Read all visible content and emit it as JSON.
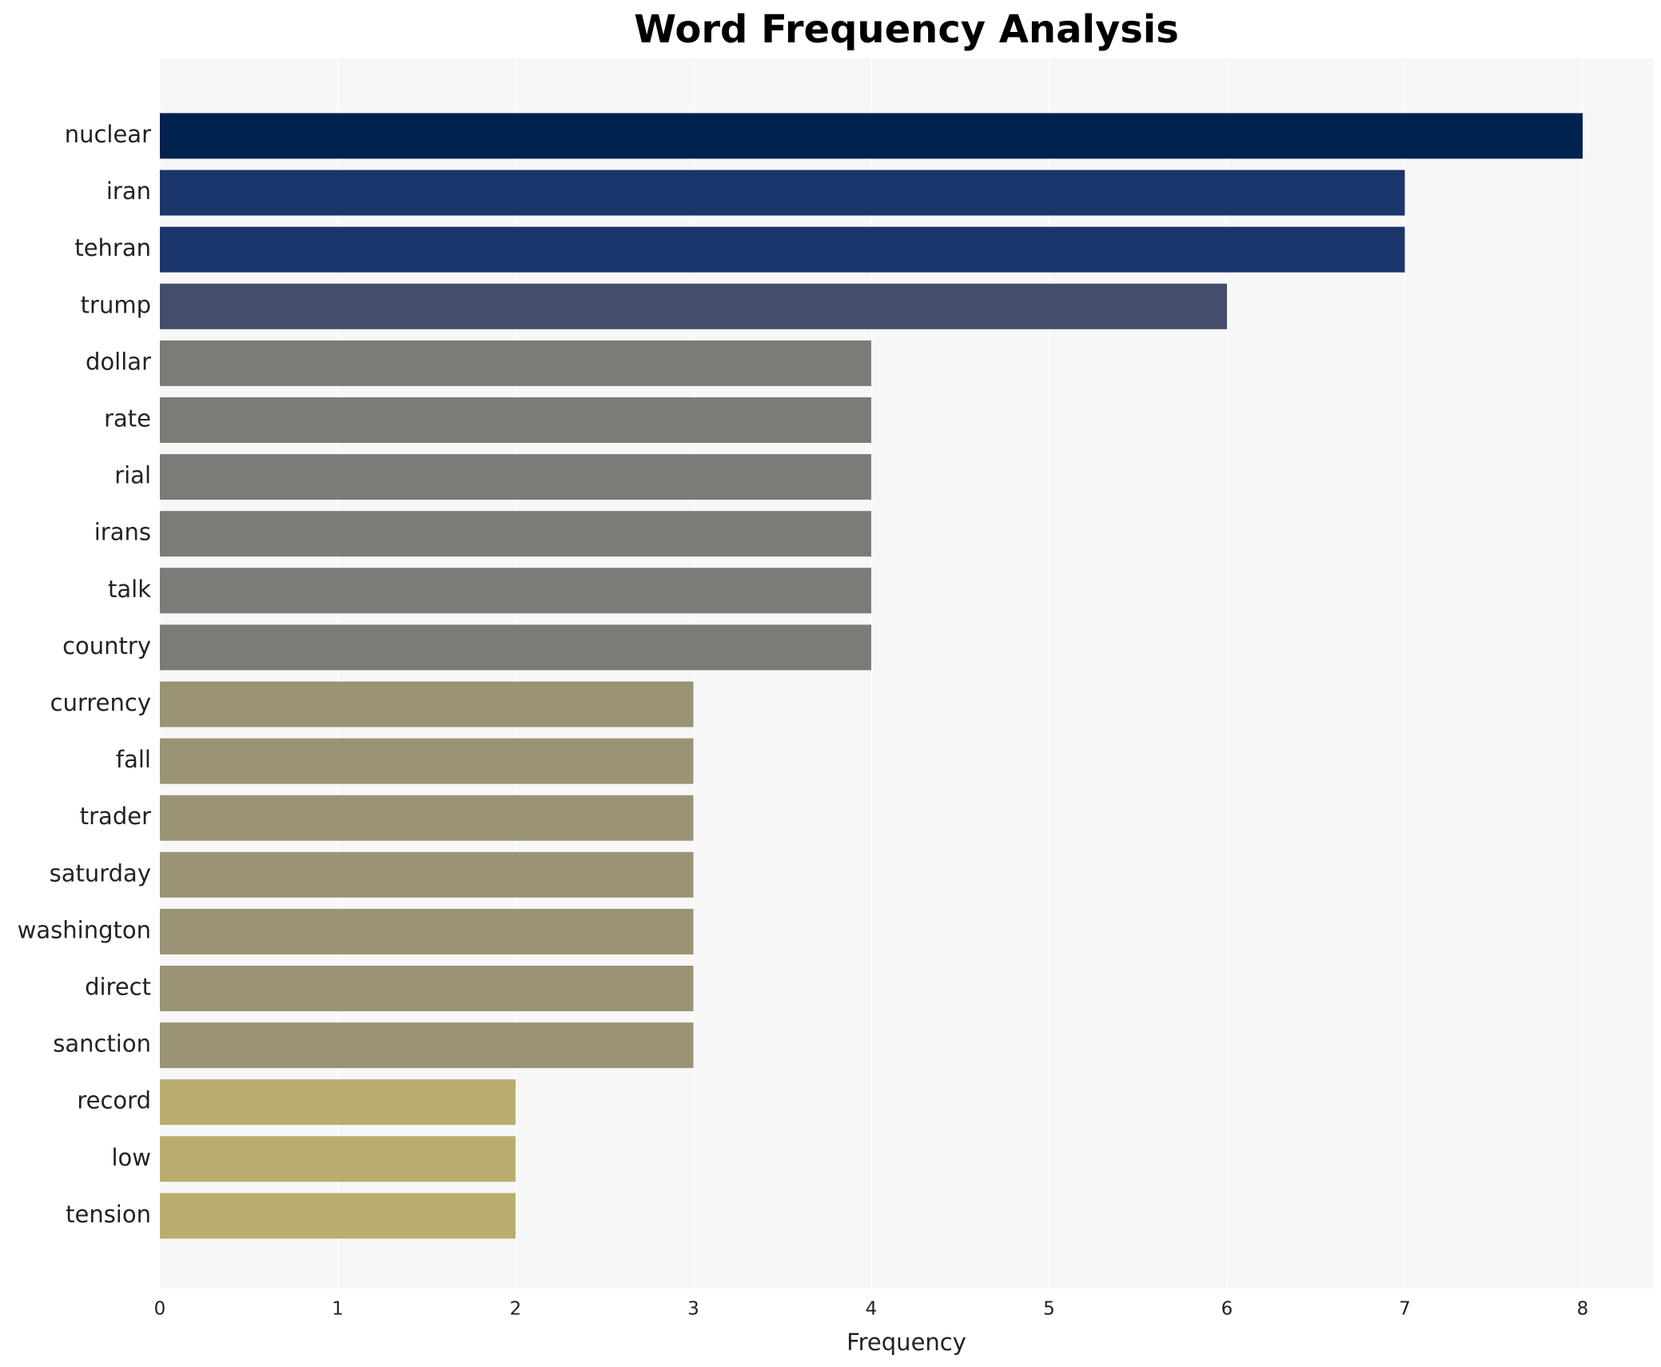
{
  "chart_data": {
    "type": "barh",
    "title": "Word Frequency Analysis",
    "xlabel": "Frequency",
    "categories": [
      "nuclear",
      "iran",
      "tehran",
      "trump",
      "dollar",
      "rate",
      "rial",
      "irans",
      "talk",
      "country",
      "currency",
      "fall",
      "trader",
      "saturday",
      "washington",
      "direct",
      "sanction",
      "record",
      "low",
      "tension"
    ],
    "values": [
      8,
      7,
      7,
      6,
      4,
      4,
      4,
      4,
      4,
      4,
      3,
      3,
      3,
      3,
      3,
      3,
      3,
      2,
      2,
      2
    ],
    "colors": [
      "#00224e",
      "#1b366b",
      "#1b366b",
      "#434e6c",
      "#7c7b78",
      "#7c7b78",
      "#7c7b78",
      "#7c7b78",
      "#7c7b78",
      "#7c7b78",
      "#9b9376",
      "#9b9376",
      "#9b9376",
      "#9b9376",
      "#9b9376",
      "#9b9376",
      "#9b9376",
      "#b9ac6f",
      "#b9ac6f",
      "#b9ac6f"
    ],
    "xlim": [
      0,
      8.4
    ],
    "xticks": [
      0,
      1,
      2,
      3,
      4,
      5,
      6,
      7,
      8
    ],
    "grid": true
  }
}
